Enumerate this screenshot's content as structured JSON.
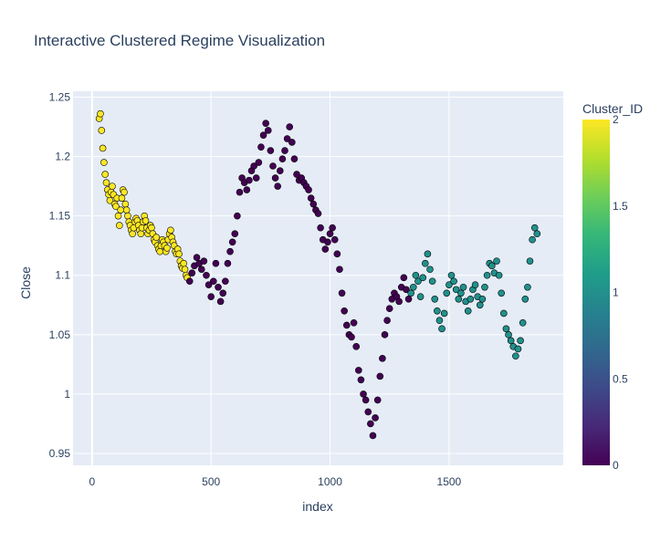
{
  "chart_data": {
    "type": "scatter",
    "title": "Interactive Clustered Regime Visualization",
    "xlabel": "index",
    "ylabel": "Close",
    "xlim": [
      -80,
      1980
    ],
    "ylim": [
      0.94,
      1.255
    ],
    "x_ticks": [
      0,
      500,
      1000,
      1500
    ],
    "x_tick_labels": [
      "0",
      "500",
      "1000",
      "1500"
    ],
    "y_ticks": [
      0.95,
      1.0,
      1.05,
      1.1,
      1.15,
      1.2,
      1.25
    ],
    "y_tick_labels": [
      "0.95",
      "1",
      "1.05",
      "1.1",
      "1.15",
      "1.2",
      "1.25"
    ],
    "grid": true,
    "plot_background": "#E5ECF6",
    "marker_outline": "#000000",
    "colorbar": {
      "title": "Cluster_ID",
      "range": [
        0,
        2
      ],
      "ticks": [
        0,
        0.5,
        1,
        1.5,
        2
      ],
      "tick_labels": [
        "0",
        "0.5",
        "1",
        "1.5",
        "2"
      ],
      "colorscale": "viridis",
      "stops": [
        "#440154",
        "#482878",
        "#3E4989",
        "#31688E",
        "#26828E",
        "#1F9E89",
        "#35B779",
        "#6ECE58",
        "#B5DE2B",
        "#FDE725"
      ]
    },
    "series": [
      {
        "cluster": 2,
        "color": "#FDE725",
        "points": [
          [
            30,
            1.232
          ],
          [
            35,
            1.236
          ],
          [
            40,
            1.222
          ],
          [
            45,
            1.207
          ],
          [
            50,
            1.195
          ],
          [
            55,
            1.185
          ],
          [
            60,
            1.178
          ],
          [
            65,
            1.172
          ],
          [
            70,
            1.168
          ],
          [
            75,
            1.163
          ],
          [
            80,
            1.17
          ],
          [
            85,
            1.175
          ],
          [
            90,
            1.168
          ],
          [
            95,
            1.16
          ],
          [
            100,
            1.158
          ],
          [
            105,
            1.165
          ],
          [
            110,
            1.15
          ],
          [
            115,
            1.142
          ],
          [
            120,
            1.155
          ],
          [
            125,
            1.165
          ],
          [
            130,
            1.172
          ],
          [
            135,
            1.17
          ],
          [
            140,
            1.16
          ],
          [
            145,
            1.155
          ],
          [
            150,
            1.15
          ],
          [
            155,
            1.145
          ],
          [
            160,
            1.142
          ],
          [
            165,
            1.138
          ],
          [
            170,
            1.135
          ],
          [
            175,
            1.14
          ],
          [
            180,
            1.145
          ],
          [
            185,
            1.148
          ],
          [
            190,
            1.146
          ],
          [
            195,
            1.142
          ],
          [
            200,
            1.138
          ],
          [
            205,
            1.135
          ],
          [
            210,
            1.14
          ],
          [
            215,
            1.145
          ],
          [
            220,
            1.15
          ],
          [
            225,
            1.146
          ],
          [
            230,
            1.14
          ],
          [
            235,
            1.135
          ],
          [
            240,
            1.138
          ],
          [
            245,
            1.142
          ],
          [
            250,
            1.14
          ],
          [
            255,
            1.135
          ],
          [
            260,
            1.13
          ],
          [
            265,
            1.128
          ],
          [
            270,
            1.132
          ],
          [
            275,
            1.125
          ],
          [
            280,
            1.122
          ],
          [
            285,
            1.12
          ],
          [
            290,
            1.125
          ],
          [
            295,
            1.13
          ],
          [
            300,
            1.128
          ],
          [
            305,
            1.125
          ],
          [
            310,
            1.12
          ],
          [
            315,
            1.123
          ],
          [
            320,
            1.13
          ],
          [
            325,
            1.135
          ],
          [
            330,
            1.138
          ],
          [
            335,
            1.132
          ],
          [
            340,
            1.128
          ],
          [
            345,
            1.125
          ],
          [
            350,
            1.12
          ],
          [
            355,
            1.118
          ],
          [
            360,
            1.122
          ],
          [
            365,
            1.118
          ],
          [
            370,
            1.112
          ],
          [
            375,
            1.108
          ],
          [
            380,
            1.106
          ],
          [
            385,
            1.11
          ],
          [
            390,
            1.105
          ],
          [
            395,
            1.1
          ],
          [
            400,
            1.098
          ]
        ]
      },
      {
        "cluster": 0,
        "color": "#440154",
        "points": [
          [
            410,
            1.095
          ],
          [
            420,
            1.102
          ],
          [
            430,
            1.108
          ],
          [
            440,
            1.115
          ],
          [
            450,
            1.11
          ],
          [
            460,
            1.105
          ],
          [
            470,
            1.112
          ],
          [
            480,
            1.1
          ],
          [
            490,
            1.092
          ],
          [
            500,
            1.082
          ],
          [
            510,
            1.095
          ],
          [
            520,
            1.11
          ],
          [
            530,
            1.09
          ],
          [
            540,
            1.078
          ],
          [
            550,
            1.085
          ],
          [
            560,
            1.095
          ],
          [
            570,
            1.11
          ],
          [
            580,
            1.12
          ],
          [
            590,
            1.128
          ],
          [
            600,
            1.135
          ],
          [
            610,
            1.15
          ],
          [
            620,
            1.17
          ],
          [
            630,
            1.182
          ],
          [
            640,
            1.178
          ],
          [
            650,
            1.172
          ],
          [
            660,
            1.18
          ],
          [
            670,
            1.188
          ],
          [
            680,
            1.192
          ],
          [
            690,
            1.182
          ],
          [
            700,
            1.195
          ],
          [
            710,
            1.208
          ],
          [
            720,
            1.218
          ],
          [
            730,
            1.228
          ],
          [
            740,
            1.222
          ],
          [
            750,
            1.205
          ],
          [
            760,
            1.192
          ],
          [
            770,
            1.182
          ],
          [
            780,
            1.175
          ],
          [
            790,
            1.188
          ],
          [
            800,
            1.198
          ],
          [
            810,
            1.205
          ],
          [
            820,
            1.215
          ],
          [
            830,
            1.225
          ],
          [
            840,
            1.212
          ],
          [
            850,
            1.198
          ],
          [
            860,
            1.185
          ],
          [
            870,
            1.18
          ],
          [
            880,
            1.182
          ],
          [
            890,
            1.178
          ],
          [
            900,
            1.175
          ],
          [
            910,
            1.172
          ],
          [
            920,
            1.165
          ],
          [
            930,
            1.16
          ],
          [
            940,
            1.155
          ],
          [
            950,
            1.152
          ],
          [
            960,
            1.14
          ],
          [
            970,
            1.13
          ],
          [
            980,
            1.122
          ],
          [
            990,
            1.128
          ],
          [
            1000,
            1.135
          ],
          [
            1010,
            1.14
          ],
          [
            1020,
            1.13
          ],
          [
            1030,
            1.118
          ],
          [
            1040,
            1.105
          ],
          [
            1050,
            1.085
          ],
          [
            1060,
            1.07
          ],
          [
            1070,
            1.058
          ],
          [
            1080,
            1.05
          ],
          [
            1090,
            1.048
          ],
          [
            1100,
            1.06
          ],
          [
            1110,
            1.04
          ],
          [
            1120,
            1.02
          ],
          [
            1130,
            1.012
          ],
          [
            1140,
            1.0
          ],
          [
            1150,
            0.995
          ],
          [
            1160,
            0.985
          ],
          [
            1170,
            0.975
          ],
          [
            1180,
            0.965
          ],
          [
            1190,
            0.98
          ],
          [
            1200,
            0.995
          ],
          [
            1210,
            1.015
          ],
          [
            1220,
            1.03
          ],
          [
            1230,
            1.05
          ],
          [
            1240,
            1.062
          ],
          [
            1250,
            1.072
          ],
          [
            1260,
            1.08
          ],
          [
            1270,
            1.085
          ],
          [
            1280,
            1.082
          ],
          [
            1290,
            1.078
          ],
          [
            1300,
            1.09
          ],
          [
            1310,
            1.098
          ],
          [
            1320,
            1.088
          ],
          [
            1330,
            1.08
          ]
        ]
      },
      {
        "cluster": 1,
        "color": "#21918C",
        "points": [
          [
            1340,
            1.085
          ],
          [
            1350,
            1.09
          ],
          [
            1360,
            1.1
          ],
          [
            1370,
            1.095
          ],
          [
            1380,
            1.082
          ],
          [
            1390,
            1.098
          ],
          [
            1400,
            1.11
          ],
          [
            1410,
            1.118
          ],
          [
            1420,
            1.105
          ],
          [
            1430,
            1.095
          ],
          [
            1440,
            1.08
          ],
          [
            1450,
            1.07
          ],
          [
            1460,
            1.062
          ],
          [
            1470,
            1.055
          ],
          [
            1480,
            1.068
          ],
          [
            1490,
            1.085
          ],
          [
            1500,
            1.092
          ],
          [
            1510,
            1.1
          ],
          [
            1520,
            1.095
          ],
          [
            1530,
            1.088
          ],
          [
            1540,
            1.08
          ],
          [
            1550,
            1.085
          ],
          [
            1560,
            1.09
          ],
          [
            1570,
            1.078
          ],
          [
            1580,
            1.07
          ],
          [
            1590,
            1.08
          ],
          [
            1600,
            1.088
          ],
          [
            1610,
            1.092
          ],
          [
            1620,
            1.082
          ],
          [
            1630,
            1.075
          ],
          [
            1640,
            1.08
          ],
          [
            1650,
            1.09
          ],
          [
            1660,
            1.1
          ],
          [
            1670,
            1.11
          ],
          [
            1680,
            1.108
          ],
          [
            1690,
            1.102
          ],
          [
            1700,
            1.112
          ],
          [
            1710,
            1.1
          ],
          [
            1720,
            1.085
          ],
          [
            1730,
            1.068
          ],
          [
            1740,
            1.055
          ],
          [
            1750,
            1.05
          ],
          [
            1760,
            1.045
          ],
          [
            1770,
            1.04
          ],
          [
            1780,
            1.032
          ],
          [
            1790,
            1.038
          ],
          [
            1800,
            1.045
          ],
          [
            1810,
            1.06
          ],
          [
            1820,
            1.08
          ],
          [
            1830,
            1.09
          ],
          [
            1840,
            1.112
          ],
          [
            1850,
            1.13
          ],
          [
            1860,
            1.14
          ],
          [
            1870,
            1.135
          ]
        ]
      }
    ]
  }
}
